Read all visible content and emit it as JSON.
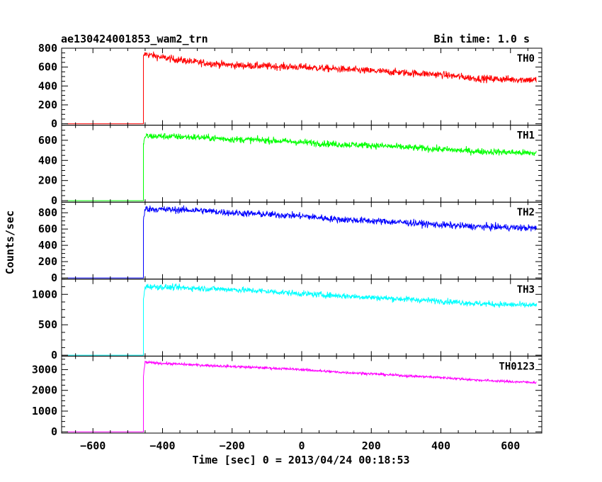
{
  "header": {
    "title": "ae130424001853_wam2_trn",
    "bin_time": "Bin time: 1.0 s"
  },
  "chart_data": {
    "type": "line",
    "title": "ae130424001853_wam2_trn",
    "xlabel": "Time [sec] 0 = 2013/04/24 00:18:53",
    "ylabel": "Counts/sec",
    "xlim": [
      -690,
      690
    ],
    "x_ticks": [
      -600,
      -400,
      -200,
      0,
      200,
      400,
      600
    ],
    "x_tick_labels": [
      "−600",
      "−400",
      "−200",
      "0",
      "200",
      "400",
      "600"
    ],
    "grid": false,
    "panels": [
      {
        "name": "TH0",
        "color": "#ff0000",
        "ylim": [
          -15,
          800
        ],
        "y_ticks": [
          0,
          200,
          400,
          600,
          800
        ],
        "y_tick_labels": [
          "0",
          "200",
          "400",
          "600",
          "800"
        ],
        "x": [
          -675,
          -455,
          -455,
          -450,
          -400,
          -300,
          -200,
          -100,
          0,
          100,
          200,
          300,
          400,
          500,
          600,
          675
        ],
        "y": [
          0,
          0,
          700,
          740,
          700,
          650,
          620,
          610,
          600,
          580,
          560,
          540,
          520,
          480,
          470,
          465
        ],
        "noise": 35
      },
      {
        "name": "TH1",
        "color": "#00ff00",
        "ylim": [
          -15,
          750
        ],
        "y_ticks": [
          0,
          200,
          400,
          600
        ],
        "y_tick_labels": [
          "0",
          "200",
          "400",
          "600"
        ],
        "x": [
          -675,
          -455,
          -455,
          -450,
          -400,
          -300,
          -200,
          -100,
          0,
          100,
          200,
          300,
          400,
          500,
          600,
          675
        ],
        "y": [
          0,
          0,
          550,
          640,
          640,
          630,
          610,
          600,
          580,
          560,
          550,
          530,
          510,
          490,
          480,
          470
        ],
        "noise": 30
      },
      {
        "name": "TH2",
        "color": "#0000ff",
        "ylim": [
          -15,
          930
        ],
        "y_ticks": [
          0,
          200,
          400,
          600,
          800
        ],
        "y_tick_labels": [
          "0",
          "200",
          "400",
          "600",
          "800"
        ],
        "x": [
          -675,
          -455,
          -455,
          -450,
          -400,
          -300,
          -200,
          -100,
          0,
          100,
          200,
          300,
          400,
          500,
          600,
          675
        ],
        "y": [
          0,
          0,
          700,
          850,
          840,
          830,
          800,
          780,
          760,
          720,
          700,
          680,
          650,
          630,
          620,
          610
        ],
        "noise": 38
      },
      {
        "name": "TH3",
        "color": "#00ffff",
        "ylim": [
          -15,
          1250
        ],
        "y_ticks": [
          0,
          500,
          1000
        ],
        "y_tick_labels": [
          "0",
          "500",
          "1000"
        ],
        "x": [
          -675,
          -455,
          -455,
          -450,
          -400,
          -300,
          -200,
          -100,
          0,
          100,
          200,
          300,
          400,
          500,
          600,
          675
        ],
        "y": [
          0,
          0,
          900,
          1130,
          1120,
          1100,
          1080,
          1050,
          1010,
          980,
          950,
          920,
          890,
          850,
          830,
          820
        ],
        "noise": 45
      },
      {
        "name": "TH0123",
        "color": "#ff00ff",
        "ylim": [
          -60,
          3650
        ],
        "y_ticks": [
          0,
          1000,
          2000,
          3000
        ],
        "y_tick_labels": [
          "0",
          "1000",
          "2000",
          "3000"
        ],
        "x": [
          -675,
          -455,
          -455,
          -450,
          -400,
          -300,
          -200,
          -100,
          0,
          100,
          200,
          300,
          400,
          500,
          600,
          675
        ],
        "y": [
          0,
          0,
          2700,
          3350,
          3300,
          3220,
          3150,
          3080,
          3000,
          2880,
          2800,
          2700,
          2620,
          2500,
          2420,
          2380
        ],
        "noise": 55
      }
    ]
  }
}
